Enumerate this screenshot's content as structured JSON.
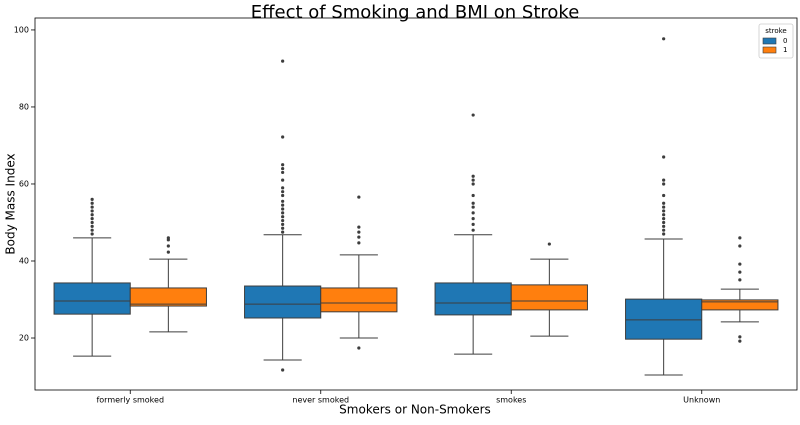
{
  "chart_data": {
    "type": "box",
    "title": "Effect of Smoking and BMI on Stroke",
    "x_label": "Smokers or Non-Smokers",
    "y_label": "Body Mass Index",
    "categories": [
      "formerly smoked",
      "never smoked",
      "smokes",
      "Unknown"
    ],
    "ylim": [
      6.5,
      103.1
    ],
    "yticks": [
      20,
      40,
      60,
      80,
      100
    ],
    "legend_title": "stroke",
    "legend_position": "upper right",
    "series": [
      {
        "name": "0",
        "color": "#1f77b4",
        "boxes": [
          {
            "whislo": 15.3,
            "q1": 26.2,
            "med": 29.6,
            "q3": 34.3,
            "whishi": 46.0,
            "fliers": [
              47,
              48,
              49,
              50,
              51,
              52,
              53,
              54,
              55,
              56
            ]
          },
          {
            "whislo": 14.3,
            "q1": 25.2,
            "med": 28.8,
            "q3": 33.5,
            "whishi": 46.8,
            "fliers": [
              11.7,
              47.5,
              48.5,
              49.5,
              50.5,
              51.5,
              52.5,
              53.5,
              54.5,
              55.5,
              57,
              58,
              59,
              61,
              63,
              64,
              65,
              72.2,
              91.9
            ]
          },
          {
            "whislo": 15.8,
            "q1": 26.0,
            "med": 29.1,
            "q3": 34.3,
            "whishi": 46.8,
            "fliers": [
              48,
              49.5,
              51,
              52.5,
              54,
              55,
              57,
              60,
              61,
              62,
              77.9
            ]
          },
          {
            "whislo": 10.4,
            "q1": 19.7,
            "med": 24.7,
            "q3": 30.1,
            "whishi": 45.7,
            "fliers": [
              47,
              48,
              49,
              50,
              51,
              52,
              53,
              54,
              55,
              57,
              60,
              61,
              67.0,
              97.7
            ]
          }
        ]
      },
      {
        "name": "1",
        "color": "#ff7f0e",
        "boxes": [
          {
            "whislo": 21.6,
            "q1": 28.3,
            "med": 28.8,
            "q3": 33.0,
            "whishi": 40.5,
            "fliers": [
              42.3,
              43.9,
              45.5,
              46.0
            ]
          },
          {
            "whislo": 20.0,
            "q1": 26.8,
            "med": 29.1,
            "q3": 33.0,
            "whishi": 41.6,
            "fliers": [
              17.4,
              44.7,
              46.2,
              47.5,
              48.8,
              56.6
            ]
          },
          {
            "whislo": 20.5,
            "q1": 27.3,
            "med": 29.6,
            "q3": 33.8,
            "whishi": 40.5,
            "fliers": [
              44.4
            ]
          },
          {
            "whislo": 24.2,
            "q1": 27.3,
            "med": 29.4,
            "q3": 29.9,
            "whishi": 32.7,
            "fliers": [
              19.2,
              20.3,
              35.1,
              37.1,
              39.2,
              43.9,
              46.0
            ]
          }
        ]
      }
    ]
  }
}
